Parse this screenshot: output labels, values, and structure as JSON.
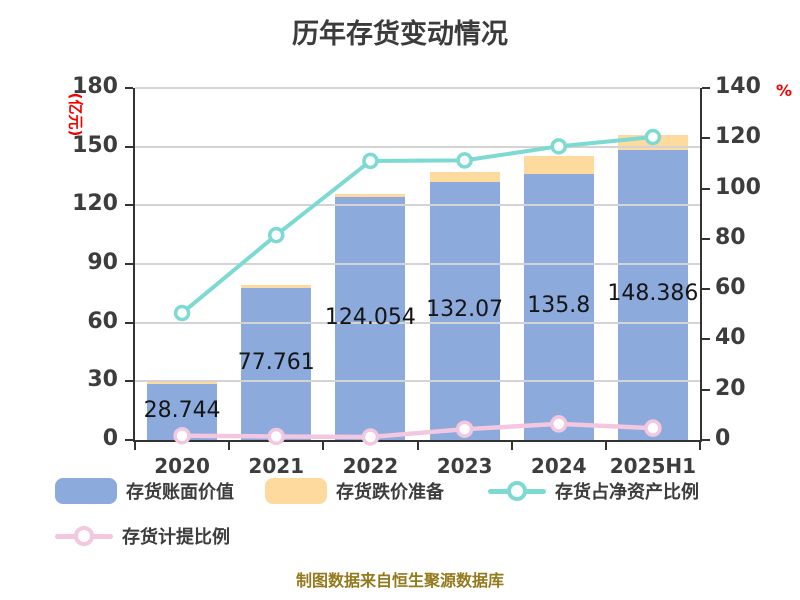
{
  "chart_data": {
    "type": "bar+line",
    "title": "历年存货变动情况",
    "categories": [
      "2020",
      "2021",
      "2022",
      "2023",
      "2024",
      "2025H1"
    ],
    "series": [
      {
        "id": "book-value",
        "name": "存货账面价值",
        "type": "bar",
        "stack": true,
        "axis": "left",
        "color": "#8caadc",
        "values": [
          28.744,
          77.761,
          124.054,
          132.07,
          135.8,
          148.386
        ],
        "labels": [
          "28.744",
          "77.761",
          "124.054",
          "132.07",
          "135.8",
          "148.386"
        ]
      },
      {
        "id": "impairment-provision",
        "name": "存货跌价准备",
        "type": "bar",
        "stack": true,
        "axis": "left",
        "color": "#ffda9e",
        "values": [
          1.0,
          1.5,
          1.7,
          5.0,
          9.3,
          7.4
        ]
      },
      {
        "id": "net-asset-ratio",
        "name": "存货占净资产比例",
        "type": "line",
        "axis": "right",
        "color": "#7cdad2",
        "line_width": 4,
        "marker_radius": 6.5,
        "values": [
          50.5,
          81.5,
          111.0,
          111.2,
          116.8,
          120.5
        ]
      },
      {
        "id": "provision-ratio",
        "name": "存货计提比例",
        "type": "line",
        "axis": "right",
        "color": "#f2c7df",
        "line_width": 4.5,
        "marker_radius": 7,
        "values": [
          1.7,
          1.4,
          1.2,
          4.3,
          6.4,
          4.7
        ]
      }
    ],
    "left_axis": {
      "unit": "(亿元)",
      "min": 0,
      "max": 180,
      "step": 30,
      "ticks": [
        0,
        30,
        60,
        90,
        120,
        150,
        180
      ]
    },
    "right_axis": {
      "unit": "%",
      "min": 0,
      "max": 140,
      "step": 20,
      "ticks": [
        0,
        20,
        40,
        60,
        80,
        100,
        120,
        140
      ]
    },
    "grid": true,
    "legend_position": "bottom-left-two-rows"
  },
  "footer": "制图数据来自恒生聚源数据库",
  "colors": {
    "title_text": "#3b3b3b",
    "axis_line": "#333333",
    "axis_text": "#3d3d3d",
    "gridline": "#d4d4d4",
    "unit_label": "#f30000",
    "value_label": "#151515",
    "footer_text": "#937a1d",
    "marker_fill": "#ffffff"
  }
}
